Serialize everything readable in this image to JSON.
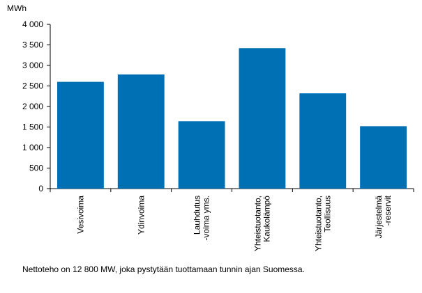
{
  "chart_data": {
    "type": "bar",
    "unit_label": "MWh",
    "categories": [
      [
        "Vesivoima"
      ],
      [
        "Ydinvoima"
      ],
      [
        "Lauhdutus",
        "-voima yms."
      ],
      [
        "Yhteistuotanto,",
        "Kaukolämpö"
      ],
      [
        "Yhteistuotanto,",
        "Teollisuus"
      ],
      [
        "Järjestelmä",
        "-reservit"
      ]
    ],
    "values": [
      2600,
      2780,
      1640,
      3420,
      2320,
      1520
    ],
    "ylim": [
      0,
      4000
    ],
    "yticks": [
      0,
      500,
      1000,
      1500,
      2000,
      2500,
      3000,
      3500,
      4000
    ],
    "ytick_labels": [
      "0",
      "500",
      "1 000",
      "1 500",
      "2 000",
      "2 500",
      "3 000",
      "3 500",
      "4 000"
    ],
    "bar_color": "#0070b4",
    "grid": false,
    "legend": "none"
  },
  "footnote": "Nettoteho  on 12 800 MW, joka pystytään tuottamaan tunnin ajan Suomessa."
}
